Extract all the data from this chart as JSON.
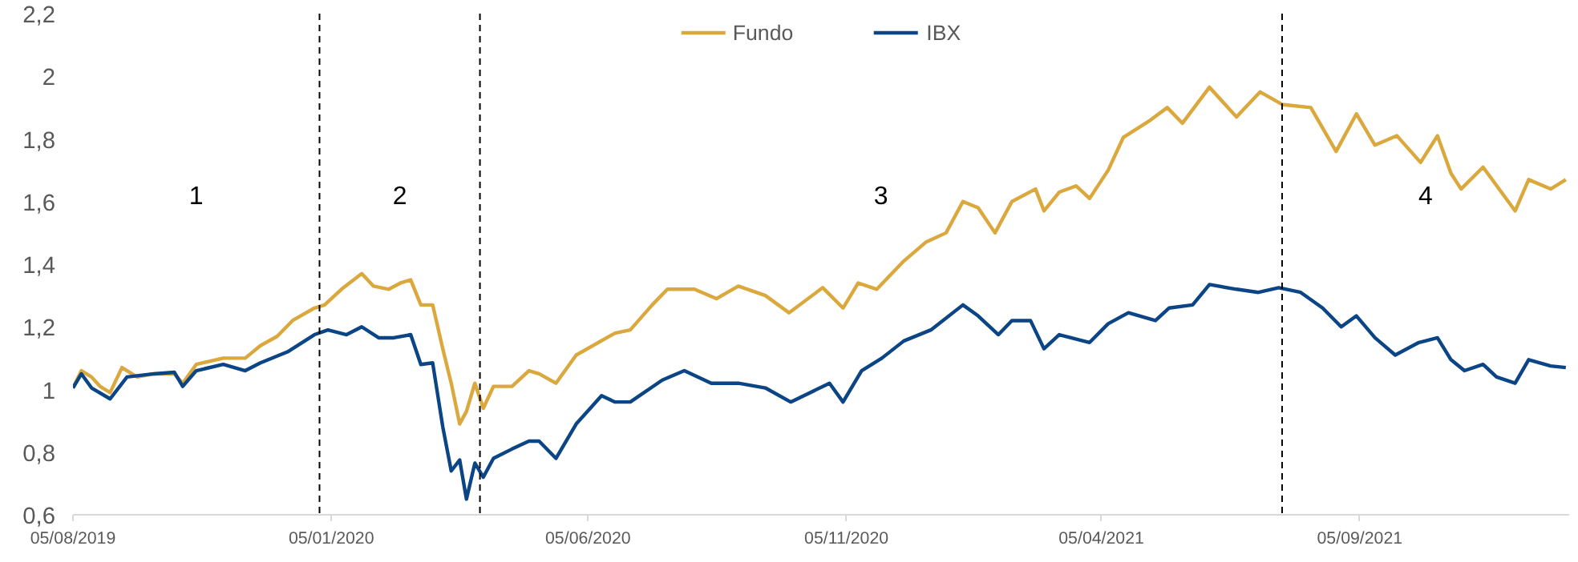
{
  "chart_data": {
    "type": "line",
    "legend": "top",
    "grid": false,
    "line_style": "solid",
    "marker": "none",
    "xlim": [
      "2019-08-05",
      "2022-01-07"
    ],
    "ylim": [
      0.6,
      2.2
    ],
    "xticks": [
      {
        "value": "2019-08-05",
        "label": "05/08/2019"
      },
      {
        "value": "2020-01-05",
        "label": "05/01/2020"
      },
      {
        "value": "2020-06-05",
        "label": "05/06/2020"
      },
      {
        "value": "2020-11-05",
        "label": "05/11/2020"
      },
      {
        "value": "2021-04-05",
        "label": "05/04/2021"
      },
      {
        "value": "2021-09-05",
        "label": "05/09/2021"
      }
    ],
    "yticks": [
      {
        "value": 0.6,
        "label": "0,6"
      },
      {
        "value": 0.8,
        "label": "0,8"
      },
      1,
      {
        "value": 1.2,
        "label": "1,2"
      },
      {
        "value": 1.4,
        "label": "1,4"
      },
      {
        "value": 1.6,
        "label": "1,6"
      },
      {
        "value": 1.8,
        "label": "1,8"
      },
      2,
      {
        "value": 2.2,
        "label": "2,2"
      }
    ],
    "ref_lines": [
      {
        "axis": "x",
        "value": "2019-12-29",
        "color": "#000000",
        "line_style": "dashed"
      },
      {
        "axis": "x",
        "value": "2020-04-02",
        "color": "#000000",
        "line_style": "dashed"
      },
      {
        "axis": "x",
        "value": "2021-07-21",
        "color": "#000000",
        "line_style": "dashed"
      }
    ],
    "annotations": [
      "1",
      "2",
      "3",
      "4"
    ],
    "series": [
      {
        "name": "Fundo",
        "color": "#daa83c",
        "x": [
          "2019-08-05",
          "2019-08-10",
          "2019-08-16",
          "2019-08-21",
          "2019-08-27",
          "2019-09-03",
          "2019-09-12",
          "2019-09-22",
          "2019-10-04",
          "2019-10-09",
          "2019-10-17",
          "2019-11-02",
          "2019-11-15",
          "2019-11-24",
          "2019-12-04",
          "2019-12-13",
          "2019-12-26",
          "2020-01-01",
          "2020-01-11",
          "2020-01-23",
          "2020-01-30",
          "2020-02-08",
          "2020-02-15",
          "2020-02-21",
          "2020-02-27",
          "2020-03-05",
          "2020-03-11",
          "2020-03-16",
          "2020-03-21",
          "2020-03-25",
          "2020-03-30",
          "2020-04-04",
          "2020-04-10",
          "2020-04-21",
          "2020-05-01",
          "2020-05-07",
          "2020-05-17",
          "2020-05-29",
          "2020-06-21",
          "2020-06-30",
          "2020-07-13",
          "2020-07-22",
          "2020-08-07",
          "2020-08-20",
          "2020-09-02",
          "2020-09-18",
          "2020-10-02",
          "2020-10-22",
          "2020-11-03",
          "2020-11-12",
          "2020-11-23",
          "2020-12-09",
          "2020-12-22",
          "2021-01-03",
          "2021-01-13",
          "2021-01-22",
          "2021-02-01",
          "2021-02-11",
          "2021-02-25",
          "2021-03-02",
          "2021-03-11",
          "2021-03-21",
          "2021-03-29",
          "2021-04-09",
          "2021-04-18",
          "2021-05-04",
          "2021-05-14",
          "2021-05-23",
          "2021-06-08",
          "2021-06-24",
          "2021-07-08",
          "2021-07-21",
          "2021-08-07",
          "2021-08-22",
          "2021-09-03",
          "2021-09-14",
          "2021-09-27",
          "2021-10-11",
          "2021-10-21",
          "2021-10-29",
          "2021-11-04",
          "2021-11-17",
          "2021-12-06",
          "2021-12-14",
          "2021-12-27",
          "2022-01-05"
        ],
        "values": [
          1.005,
          1.06,
          1.04,
          1.01,
          0.99,
          1.07,
          1.04,
          1.05,
          1.05,
          1.02,
          1.08,
          1.1,
          1.1,
          1.14,
          1.17,
          1.22,
          1.26,
          1.27,
          1.32,
          1.37,
          1.33,
          1.32,
          1.34,
          1.35,
          1.27,
          1.27,
          1.13,
          1.02,
          0.89,
          0.93,
          1.02,
          0.94,
          1.01,
          1.01,
          1.06,
          1.05,
          1.02,
          1.11,
          1.18,
          1.19,
          1.27,
          1.32,
          1.32,
          1.29,
          1.33,
          1.3,
          1.245,
          1.325,
          1.26,
          1.34,
          1.32,
          1.41,
          1.47,
          1.5,
          1.6,
          1.58,
          1.5,
          1.6,
          1.64,
          1.57,
          1.63,
          1.65,
          1.61,
          1.7,
          1.805,
          1.86,
          1.9,
          1.85,
          1.965,
          1.87,
          1.95,
          1.91,
          1.9,
          1.76,
          1.88,
          1.78,
          1.81,
          1.725,
          1.81,
          1.69,
          1.64,
          1.71,
          1.57,
          1.67,
          1.64,
          1.67
        ]
      },
      {
        "name": "IBX",
        "color": "#0b4585",
        "x": [
          "2019-08-05",
          "2019-08-10",
          "2019-08-16",
          "2019-08-27",
          "2019-09-06",
          "2019-09-22",
          "2019-10-04",
          "2019-10-09",
          "2019-10-17",
          "2019-11-02",
          "2019-11-15",
          "2019-11-24",
          "2019-12-10",
          "2019-12-26",
          "2020-01-03",
          "2020-01-14",
          "2020-01-23",
          "2020-02-02",
          "2020-02-11",
          "2020-02-21",
          "2020-02-27",
          "2020-03-05",
          "2020-03-11",
          "2020-03-16",
          "2020-03-21",
          "2020-03-25",
          "2020-03-30",
          "2020-04-04",
          "2020-04-10",
          "2020-04-21",
          "2020-05-01",
          "2020-05-07",
          "2020-05-17",
          "2020-05-29",
          "2020-06-13",
          "2020-06-21",
          "2020-06-30",
          "2020-07-19",
          "2020-08-01",
          "2020-08-17",
          "2020-09-02",
          "2020-09-18",
          "2020-10-03",
          "2020-10-26",
          "2020-11-03",
          "2020-11-14",
          "2020-11-26",
          "2020-12-09",
          "2020-12-25",
          "2021-01-13",
          "2021-01-22",
          "2021-02-03",
          "2021-02-11",
          "2021-02-22",
          "2021-03-02",
          "2021-03-11",
          "2021-03-29",
          "2021-04-09",
          "2021-04-21",
          "2021-05-07",
          "2021-05-15",
          "2021-05-29",
          "2021-06-08",
          "2021-06-24",
          "2021-07-07",
          "2021-07-19",
          "2021-08-01",
          "2021-08-14",
          "2021-08-25",
          "2021-09-03",
          "2021-09-14",
          "2021-09-26",
          "2021-10-10",
          "2021-10-21",
          "2021-10-29",
          "2021-11-06",
          "2021-11-17",
          "2021-11-25",
          "2021-12-06",
          "2021-12-14",
          "2021-12-27",
          "2022-01-05"
        ],
        "values": [
          1.005,
          1.05,
          1.005,
          0.97,
          1.04,
          1.05,
          1.055,
          1.01,
          1.06,
          1.08,
          1.06,
          1.085,
          1.12,
          1.175,
          1.19,
          1.175,
          1.2,
          1.165,
          1.165,
          1.175,
          1.08,
          1.085,
          0.88,
          0.74,
          0.775,
          0.65,
          0.765,
          0.72,
          0.78,
          0.81,
          0.835,
          0.835,
          0.78,
          0.89,
          0.98,
          0.96,
          0.96,
          1.03,
          1.06,
          1.02,
          1.02,
          1.005,
          0.96,
          1.02,
          0.96,
          1.06,
          1.1,
          1.155,
          1.19,
          1.27,
          1.235,
          1.175,
          1.22,
          1.22,
          1.13,
          1.175,
          1.15,
          1.21,
          1.245,
          1.22,
          1.26,
          1.27,
          1.335,
          1.32,
          1.31,
          1.325,
          1.31,
          1.26,
          1.2,
          1.235,
          1.165,
          1.11,
          1.15,
          1.165,
          1.095,
          1.06,
          1.08,
          1.04,
          1.02,
          1.095,
          1.075,
          1.07
        ]
      }
    ]
  }
}
